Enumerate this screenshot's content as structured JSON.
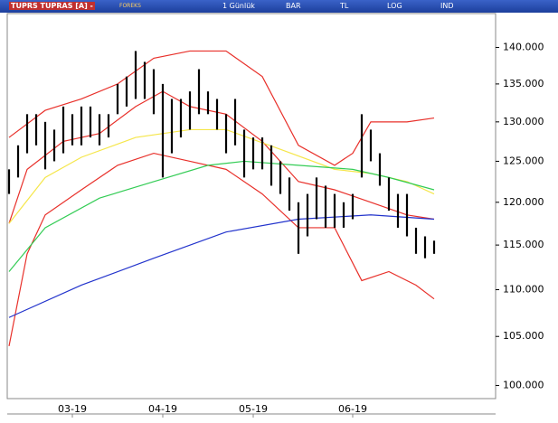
{
  "toolbar": {
    "symbol": "TUPRS TUPRAS [A] -",
    "source": "FOREKS",
    "period": "1 Günlük",
    "style": "BAR",
    "currency": "TL",
    "scale": "LOG",
    "indicators": "IND"
  },
  "chart_data": {
    "type": "ohlc",
    "categories": [
      null,
      null,
      null,
      null,
      null,
      null,
      null,
      "03-19",
      null,
      null,
      null,
      null,
      null,
      null,
      null,
      null,
      null,
      "04-19",
      null,
      null,
      null,
      null,
      null,
      null,
      null,
      null,
      null,
      "05-19",
      null,
      null,
      null,
      null,
      null,
      null,
      null,
      null,
      null,
      null,
      "06-19",
      null,
      null,
      null,
      null,
      null,
      null,
      null,
      null,
      null
    ],
    "high": [
      124,
      127,
      131,
      131,
      130,
      129,
      132,
      131,
      132,
      132,
      131,
      131,
      135,
      136,
      139.5,
      138,
      137,
      135,
      133,
      133,
      134,
      137,
      134,
      133,
      131,
      133,
      129,
      128,
      128,
      127,
      125,
      123,
      120,
      121,
      123,
      122,
      121,
      120,
      121,
      131,
      129,
      126,
      123,
      121,
      121,
      117,
      116,
      115.5
    ],
    "low": [
      121,
      123,
      126,
      127,
      124,
      125,
      126,
      127,
      127,
      128,
      127,
      128,
      131,
      132,
      133,
      133,
      131,
      123,
      126,
      128,
      129,
      131,
      131,
      129,
      126,
      127,
      123,
      124,
      124,
      122,
      121,
      119,
      114,
      116,
      118,
      117,
      117,
      117,
      118,
      123,
      125,
      122,
      119,
      117,
      116,
      114,
      113.5,
      114
    ],
    "bar_color": "#000000",
    "series": [
      {
        "color": "#e8302a",
        "x": [
          0,
          4,
          8,
          12,
          16,
          20,
          24,
          28,
          32,
          36,
          38,
          40,
          44,
          47
        ],
        "values": [
          128,
          131.5,
          133,
          135,
          138.5,
          139.5,
          139.5,
          136,
          127,
          124.5,
          126,
          130,
          130,
          130.5
        ]
      },
      {
        "color": "#e8302a",
        "x": [
          0,
          2,
          4,
          8,
          12,
          16,
          20,
          24,
          28,
          32,
          36,
          39,
          42,
          45,
          47
        ],
        "values": [
          104,
          114,
          118.5,
          121.5,
          124.5,
          126,
          125,
          124,
          121,
          117,
          117,
          111,
          112,
          110.5,
          109
        ]
      },
      {
        "color": "#e8302a",
        "x": [
          0,
          2,
          6,
          10,
          14,
          17,
          20,
          24,
          28,
          32,
          36,
          40,
          44,
          47
        ],
        "values": [
          117.5,
          124,
          127.5,
          128.5,
          132,
          134,
          132,
          131,
          127.5,
          122.5,
          121.5,
          120,
          118.5,
          118
        ]
      },
      {
        "color": "#f5e64a",
        "x": [
          0,
          4,
          8,
          14,
          20,
          24,
          30,
          36,
          40,
          44,
          47
        ],
        "values": [
          117.5,
          123,
          125.5,
          128,
          129,
          129,
          126.5,
          124,
          123.5,
          122.5,
          121
        ]
      },
      {
        "color": "#33cc55",
        "x": [
          0,
          4,
          10,
          16,
          22,
          26,
          32,
          38,
          42,
          47
        ],
        "values": [
          112,
          117,
          120.5,
          122.5,
          124.5,
          125,
          124.5,
          124,
          123,
          121.5
        ]
      },
      {
        "color": "#2233cc",
        "x": [
          0,
          8,
          16,
          24,
          32,
          40,
          47
        ],
        "values": [
          107,
          110.5,
          113.5,
          116.5,
          118,
          118.5,
          118
        ]
      }
    ],
    "log_scale": true,
    "ylim": [
      98.7,
      144.8
    ],
    "yticks": [
      {
        "value": 100,
        "label": "100.000"
      },
      {
        "value": 105,
        "label": "105.000"
      },
      {
        "value": 110,
        "label": "110.000"
      },
      {
        "value": 115,
        "label": "115.000"
      },
      {
        "value": 120,
        "label": "120.000"
      },
      {
        "value": 125,
        "label": "125.000"
      },
      {
        "value": 130,
        "label": "130.000"
      },
      {
        "value": 135,
        "label": "135.000"
      },
      {
        "value": 140,
        "label": "140.000"
      }
    ]
  }
}
